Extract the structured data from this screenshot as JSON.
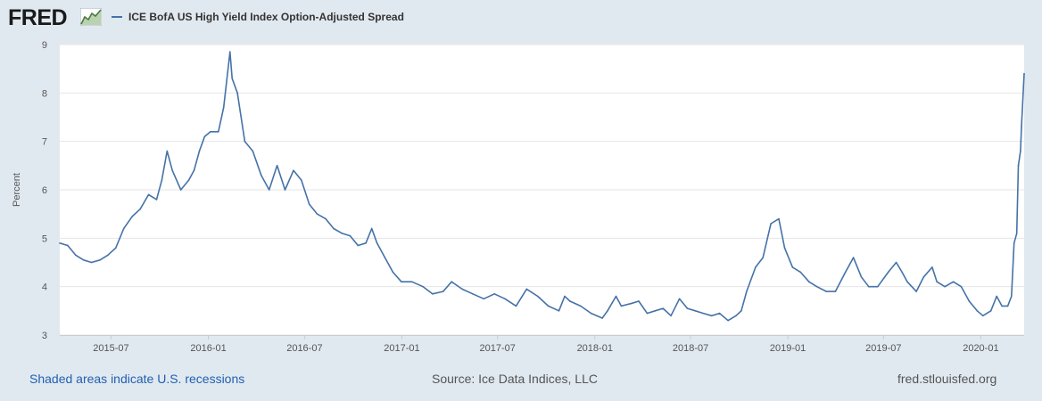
{
  "logo": {
    "text": "FRED"
  },
  "footer": {
    "recession_note": "Shaded areas indicate U.S. recessions",
    "source": "Source: Ice Data Indices, LLC",
    "url": "fred.stlouisfed.org"
  },
  "colors": {
    "series": "#4572a7",
    "background": "#e1e9f0",
    "plot_bg": "#ffffff",
    "grid": "#e6e6e6"
  },
  "chart_data": {
    "type": "line",
    "title": "ICE BofA US High Yield Index Option-Adjusted Spread",
    "xlabel": "",
    "ylabel": "Percent",
    "ylim": [
      3,
      9
    ],
    "yticks": [
      3,
      4,
      5,
      6,
      7,
      8,
      9
    ],
    "xlim": [
      "2015-03-26",
      "2020-03-23"
    ],
    "xticks": [
      "2015-07",
      "2016-01",
      "2016-07",
      "2017-01",
      "2017-07",
      "2018-01",
      "2018-07",
      "2019-01",
      "2019-07",
      "2020-01"
    ],
    "grid": true,
    "series": [
      {
        "name": "ICE BofA US High Yield Index Option-Adjusted Spread",
        "x": [
          "2015-03-26",
          "2015-04-10",
          "2015-04-25",
          "2015-05-10",
          "2015-05-25",
          "2015-06-10",
          "2015-06-25",
          "2015-07-10",
          "2015-07-25",
          "2015-08-10",
          "2015-08-25",
          "2015-09-10",
          "2015-09-25",
          "2015-10-05",
          "2015-10-15",
          "2015-10-25",
          "2015-11-10",
          "2015-11-25",
          "2015-12-05",
          "2015-12-15",
          "2015-12-25",
          "2016-01-05",
          "2016-01-20",
          "2016-01-30",
          "2016-02-11",
          "2016-02-15",
          "2016-02-25",
          "2016-03-10",
          "2016-03-25",
          "2016-04-10",
          "2016-04-25",
          "2016-05-10",
          "2016-05-25",
          "2016-06-10",
          "2016-06-25",
          "2016-07-10",
          "2016-07-25",
          "2016-08-10",
          "2016-08-25",
          "2016-09-10",
          "2016-09-25",
          "2016-10-10",
          "2016-10-25",
          "2016-11-05",
          "2016-11-15",
          "2016-11-30",
          "2016-12-15",
          "2016-12-31",
          "2017-01-20",
          "2017-02-10",
          "2017-02-28",
          "2017-03-20",
          "2017-04-05",
          "2017-04-25",
          "2017-05-15",
          "2017-06-05",
          "2017-06-25",
          "2017-07-15",
          "2017-08-05",
          "2017-08-25",
          "2017-09-15",
          "2017-10-05",
          "2017-10-25",
          "2017-11-05",
          "2017-11-15",
          "2017-12-05",
          "2017-12-25",
          "2018-01-15",
          "2018-01-25",
          "2018-02-10",
          "2018-02-20",
          "2018-03-10",
          "2018-03-25",
          "2018-04-10",
          "2018-04-25",
          "2018-05-10",
          "2018-05-25",
          "2018-06-10",
          "2018-06-25",
          "2018-07-10",
          "2018-07-25",
          "2018-08-10",
          "2018-08-25",
          "2018-09-10",
          "2018-09-25",
          "2018-10-05",
          "2018-10-15",
          "2018-11-01",
          "2018-11-15",
          "2018-11-30",
          "2018-12-15",
          "2018-12-26",
          "2019-01-10",
          "2019-01-25",
          "2019-02-10",
          "2019-02-25",
          "2019-03-15",
          "2019-04-01",
          "2019-04-20",
          "2019-05-05",
          "2019-05-20",
          "2019-06-03",
          "2019-06-20",
          "2019-07-10",
          "2019-07-25",
          "2019-08-05",
          "2019-08-15",
          "2019-09-01",
          "2019-09-15",
          "2019-10-01",
          "2019-10-10",
          "2019-10-25",
          "2019-11-10",
          "2019-11-25",
          "2019-12-10",
          "2019-12-25",
          "2020-01-05",
          "2020-01-20",
          "2020-01-31",
          "2020-02-10",
          "2020-02-21",
          "2020-02-28",
          "2020-03-04",
          "2020-03-09",
          "2020-03-12",
          "2020-03-16",
          "2020-03-18",
          "2020-03-23"
        ],
        "values": [
          4.9,
          4.85,
          4.65,
          4.55,
          4.5,
          4.55,
          4.65,
          4.8,
          5.2,
          5.45,
          5.6,
          5.9,
          5.8,
          6.2,
          6.8,
          6.4,
          6.0,
          6.2,
          6.4,
          6.8,
          7.1,
          7.2,
          7.2,
          7.7,
          8.85,
          8.3,
          8.0,
          7.0,
          6.8,
          6.3,
          6.0,
          6.5,
          6.0,
          6.4,
          6.2,
          5.7,
          5.5,
          5.4,
          5.2,
          5.1,
          5.05,
          4.85,
          4.9,
          5.2,
          4.9,
          4.6,
          4.3,
          4.1,
          4.1,
          4.0,
          3.85,
          3.9,
          4.1,
          3.95,
          3.85,
          3.75,
          3.85,
          3.75,
          3.6,
          3.95,
          3.8,
          3.6,
          3.5,
          3.8,
          3.7,
          3.6,
          3.45,
          3.35,
          3.5,
          3.8,
          3.6,
          3.65,
          3.7,
          3.45,
          3.5,
          3.55,
          3.4,
          3.75,
          3.55,
          3.5,
          3.45,
          3.4,
          3.45,
          3.3,
          3.4,
          3.5,
          3.9,
          4.4,
          4.6,
          5.3,
          5.4,
          4.8,
          4.4,
          4.3,
          4.1,
          4.0,
          3.9,
          3.9,
          4.3,
          4.6,
          4.2,
          4.0,
          4.0,
          4.3,
          4.5,
          4.3,
          4.1,
          3.9,
          4.2,
          4.4,
          4.1,
          4.0,
          4.1,
          4.0,
          3.7,
          3.5,
          3.4,
          3.5,
          3.8,
          3.6,
          3.6,
          3.8,
          4.9,
          5.1,
          6.5,
          6.8,
          7.3,
          8.4
        ]
      }
    ]
  }
}
